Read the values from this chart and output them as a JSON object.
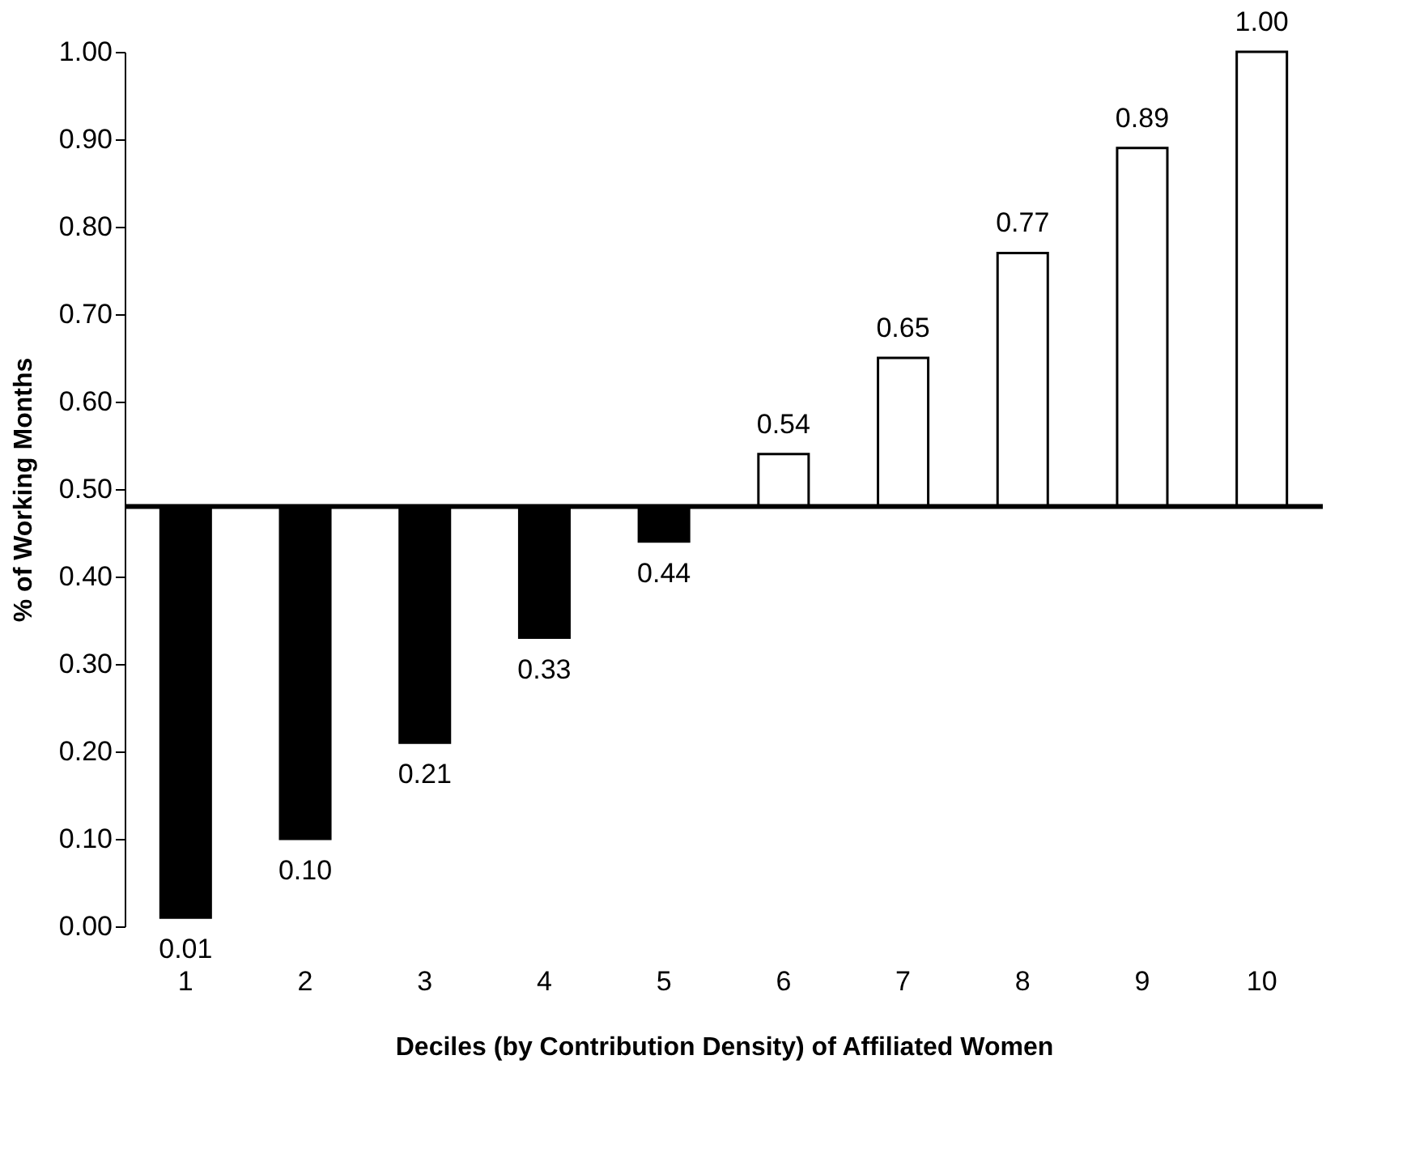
{
  "chart_data": {
    "type": "bar",
    "xlabel": "Deciles (by Contribution Density) of Affiliated Women",
    "ylabel": "% of Working Months",
    "categories": [
      "1",
      "2",
      "3",
      "4",
      "5",
      "6",
      "7",
      "8",
      "9",
      "10"
    ],
    "base": [
      0.48,
      0.48,
      0.48,
      0.48,
      0.48,
      0.48,
      0.48,
      0.48,
      0.48,
      0.48
    ],
    "values": [
      -0.47,
      -0.38,
      -0.27,
      -0.15,
      -0.04,
      0.06,
      0.17,
      0.29,
      0.41,
      0.52
    ],
    "value_labels": [
      "0.01",
      "0.10",
      "0.21",
      "0.33",
      "0.44",
      "0.54",
      "0.65",
      "0.77",
      "0.89",
      "1.00"
    ],
    "colors": [
      "#000000",
      "#000000",
      "#000000",
      "#000000",
      "#000000",
      "#ffffff",
      "#ffffff",
      "#ffffff",
      "#ffffff",
      "#ffffff"
    ],
    "ylim": [
      0,
      1
    ],
    "yticks": [
      {
        "value": 0,
        "label": "0.00"
      },
      {
        "value": 0.1,
        "label": "0.10"
      },
      {
        "value": 0.2,
        "label": "0.20"
      },
      {
        "value": 0.3,
        "label": "0.30"
      },
      {
        "value": 0.4,
        "label": "0.40"
      },
      {
        "value": 0.5,
        "label": "0.50"
      },
      {
        "value": 0.6,
        "label": "0.60"
      },
      {
        "value": 0.7,
        "label": "0.70"
      },
      {
        "value": 0.8,
        "label": "0.80"
      },
      {
        "value": 0.9,
        "label": "0.90"
      },
      {
        "value": 1,
        "label": "1.00"
      }
    ],
    "ref_lines": [
      {
        "axis": "y",
        "value": 0.48,
        "color": "#000000"
      }
    ],
    "grid": false
  }
}
